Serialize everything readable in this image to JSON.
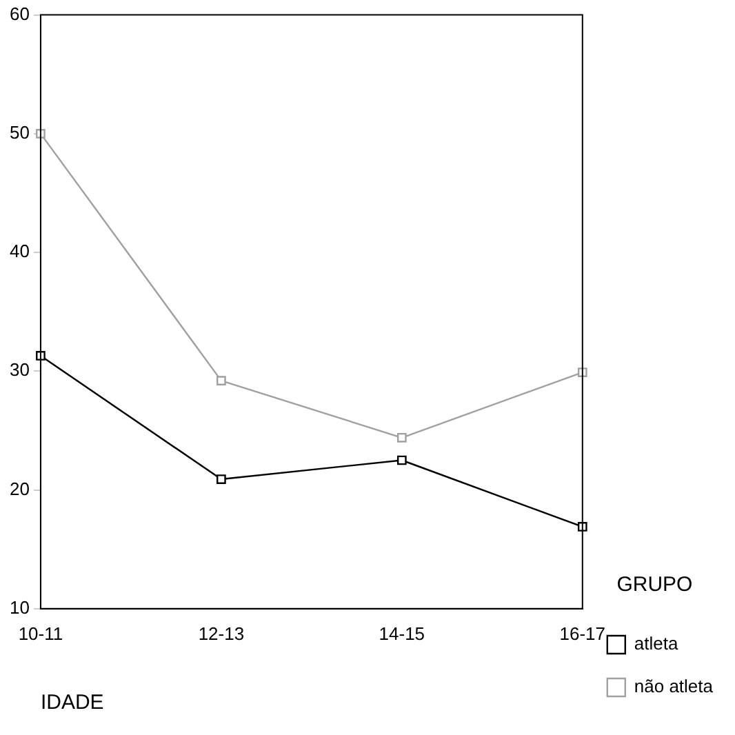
{
  "chart_data": {
    "type": "line",
    "xlabel": "IDADE",
    "legend_title": "GRUPO",
    "legend": "right",
    "marker": "square",
    "line_style": "solid",
    "grid": false,
    "categories": [
      "10-11",
      "12-13",
      "14-15",
      "16-17"
    ],
    "ylim": [
      10,
      60
    ],
    "yticks": [
      10,
      20,
      30,
      40,
      50,
      60
    ],
    "series": [
      {
        "name": "atleta",
        "color": "#000000",
        "values": [
          31.3,
          20.9,
          22.5,
          16.9
        ]
      },
      {
        "name": "não atleta",
        "color": "#a0a0a0",
        "values": [
          50.0,
          29.2,
          24.4,
          29.9
        ]
      }
    ]
  }
}
